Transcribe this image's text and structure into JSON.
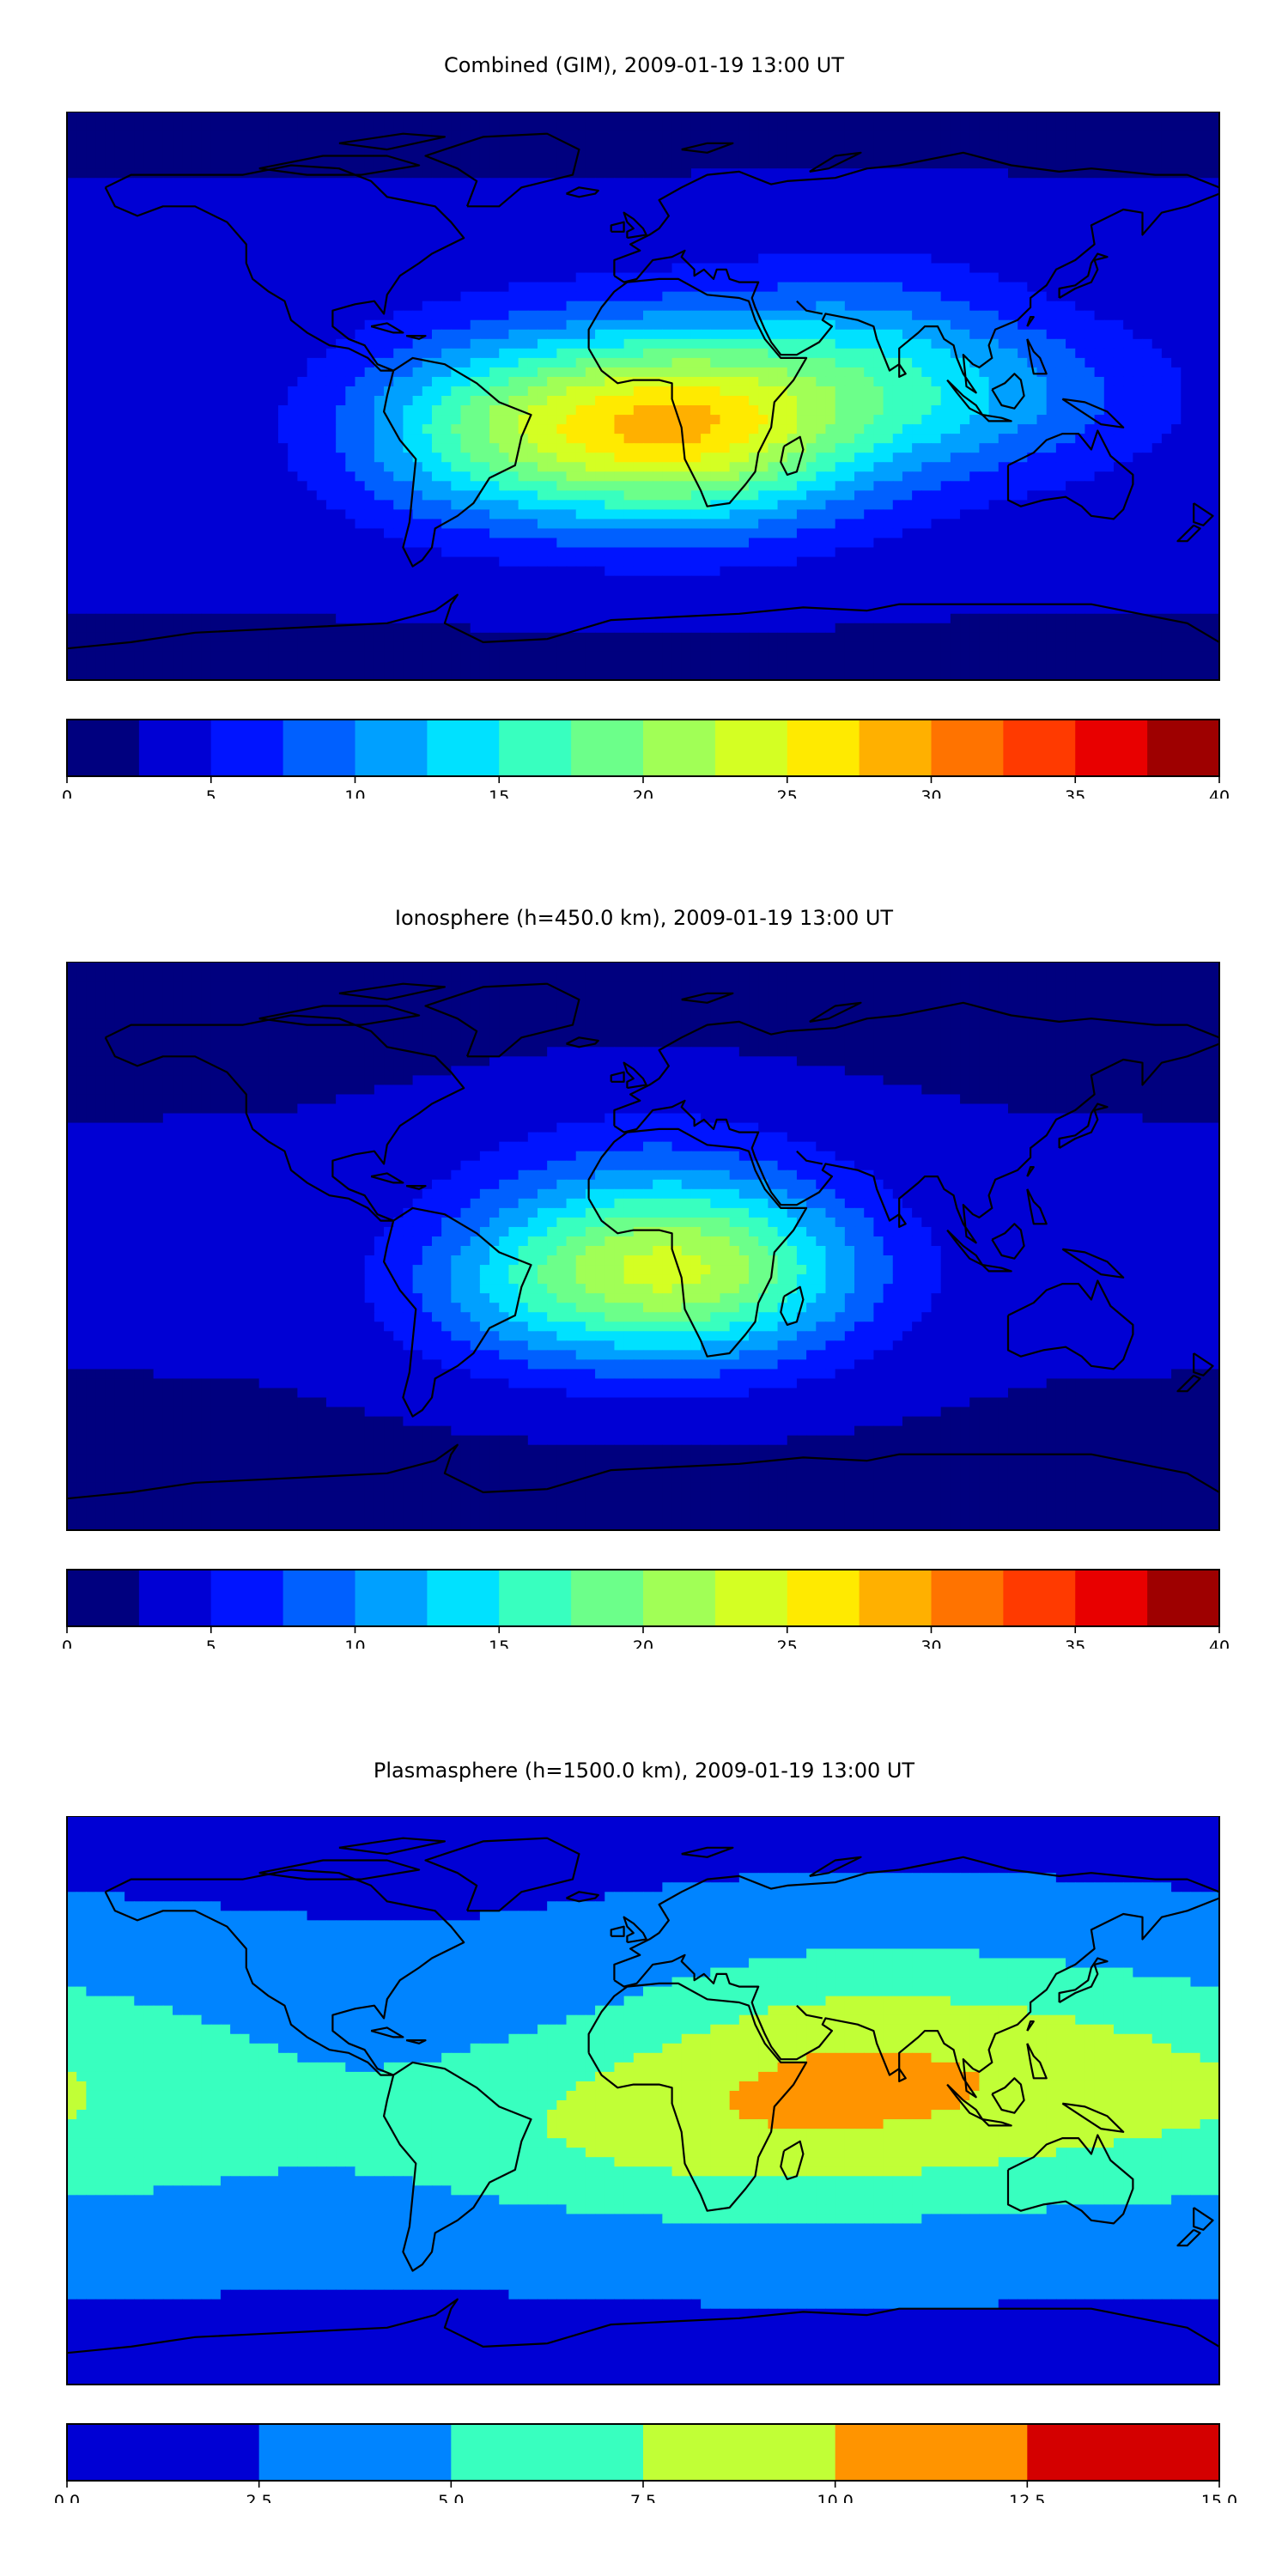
{
  "colors": {
    "jet16": [
      "#00007f",
      "#0000d4",
      "#0014ff",
      "#0060ff",
      "#00a0ff",
      "#00e1ff",
      "#38ffbf",
      "#6cff8a",
      "#a1ff56",
      "#d4ff23",
      "#ffea00",
      "#ffb000",
      "#ff7300",
      "#ff3a00",
      "#e80000",
      "#9e0000"
    ],
    "jet6": [
      "#0000d4",
      "#0084ff",
      "#38ffbf",
      "#c1ff36",
      "#ff9400",
      "#d40000"
    ],
    "coast": "#000000"
  },
  "chart_data": [
    {
      "type": "heatmap",
      "title": "Combined (GIM), 2009-01-19 13:00 UT",
      "xlabel": "",
      "ylabel": "",
      "levels": [
        0,
        2.5,
        5,
        7.5,
        10,
        12.5,
        15,
        17.5,
        20,
        22.5,
        25,
        27.5,
        30,
        32.5,
        35,
        37.5,
        40
      ],
      "colorbar_ticks": [
        "0",
        "5",
        "10",
        "15",
        "20",
        "25",
        "30",
        "35",
        "40"
      ],
      "colorbar_range": [
        0,
        40
      ],
      "field": {
        "base": 3.5,
        "blobs": [
          {
            "lon": 10,
            "lat": -10,
            "amp": 24,
            "sx": 42,
            "sy": 22
          },
          {
            "lon": -55,
            "lat": -12,
            "amp": 8,
            "sx": 30,
            "sy": 20
          },
          {
            "lon": 110,
            "lat": 0,
            "amp": 6,
            "sx": 35,
            "sy": 18
          },
          {
            "lon": 70,
            "lat": 15,
            "amp": 5,
            "sx": 30,
            "sy": 22
          }
        ]
      }
    },
    {
      "type": "heatmap",
      "title": "Ionosphere  (h=450.0 km), 2009-01-19 13:00 UT",
      "xlabel": "",
      "ylabel": "",
      "levels": [
        0,
        2.5,
        5,
        7.5,
        10,
        12.5,
        15,
        17.5,
        20,
        22.5,
        25,
        27.5,
        30,
        32.5,
        35,
        37.5,
        40
      ],
      "colorbar_ticks": [
        "0",
        "5",
        "10",
        "15",
        "20",
        "25",
        "30",
        "35",
        "40"
      ],
      "colorbar_range": [
        0,
        40
      ],
      "field": {
        "base": 2.8,
        "blobs": [
          {
            "lon": 15,
            "lat": -10,
            "amp": 16,
            "sx": 38,
            "sy": 20
          },
          {
            "lon": -40,
            "lat": -15,
            "amp": 5,
            "sx": 30,
            "sy": 18
          },
          {
            "lon": 0,
            "lat": 10,
            "amp": 5,
            "sx": 40,
            "sy": 25
          }
        ]
      }
    },
    {
      "type": "heatmap",
      "title": "Plasmasphere (h=1500.0 km), 2009-01-19 13:00 UT",
      "xlabel": "",
      "ylabel": "",
      "levels": [
        0,
        2.5,
        5,
        7.5,
        10,
        12.5,
        15
      ],
      "colorbar_ticks": [
        "0.0",
        "2.5",
        "5.0",
        "7.5",
        "10.0",
        "12.5",
        "15.0"
      ],
      "colorbar_range": [
        0,
        15
      ],
      "field": {
        "base": 3.0,
        "blobs": [
          {
            "lon": 70,
            "lat": 8,
            "amp": 6.5,
            "sx": 55,
            "sy": 30
          },
          {
            "lon": -20,
            "lat": -10,
            "amp": 3.5,
            "sx": 60,
            "sy": 22
          },
          {
            "lon": -150,
            "lat": 0,
            "amp": 2.5,
            "sx": 40,
            "sy": 28
          },
          {
            "lon": 150,
            "lat": 5,
            "amp": 2.5,
            "sx": 40,
            "sy": 28
          }
        ]
      }
    }
  ]
}
